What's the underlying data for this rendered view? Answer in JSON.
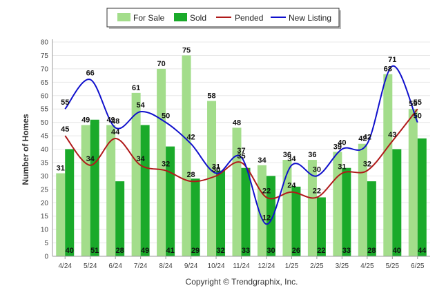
{
  "chart_data": {
    "type": "bar",
    "title": "",
    "xlabel": "",
    "ylabel": "Number of Homes",
    "ylim": [
      0,
      80
    ],
    "yticks": [
      0,
      5,
      10,
      15,
      20,
      25,
      30,
      35,
      40,
      45,
      50,
      55,
      60,
      65,
      70,
      75,
      80
    ],
    "categories": [
      "4/24",
      "5/24",
      "6/24",
      "7/24",
      "8/24",
      "9/24",
      "10/24",
      "11/24",
      "12/24",
      "1/25",
      "2/25",
      "3/25",
      "4/25",
      "5/25",
      "6/25"
    ],
    "series": [
      {
        "name": "For Sale",
        "type": "bar",
        "color": "#a3dd8b",
        "values": [
          31,
          49,
          49,
          61,
          70,
          75,
          58,
          48,
          34,
          36,
          36,
          39,
          42,
          68,
          55
        ]
      },
      {
        "name": "Sold",
        "type": "bar",
        "color": "#1aaa2a",
        "values": [
          40,
          51,
          28,
          49,
          41,
          29,
          32,
          33,
          30,
          26,
          22,
          33,
          28,
          40,
          44
        ]
      },
      {
        "name": "Pended",
        "type": "line",
        "color": "#b01a1a",
        "values": [
          45,
          34,
          44,
          34,
          32,
          28,
          30,
          35,
          22,
          24,
          22,
          31,
          32,
          43,
          55
        ]
      },
      {
        "name": "New Listing",
        "type": "line",
        "color": "#1010cc",
        "values": [
          55,
          66,
          48,
          54,
          50,
          42,
          31,
          37,
          12,
          34,
          30,
          40,
          42,
          71,
          50
        ]
      }
    ],
    "grid": true,
    "legend": "top-center"
  },
  "footer": "Copyright © Trendgraphix, Inc."
}
